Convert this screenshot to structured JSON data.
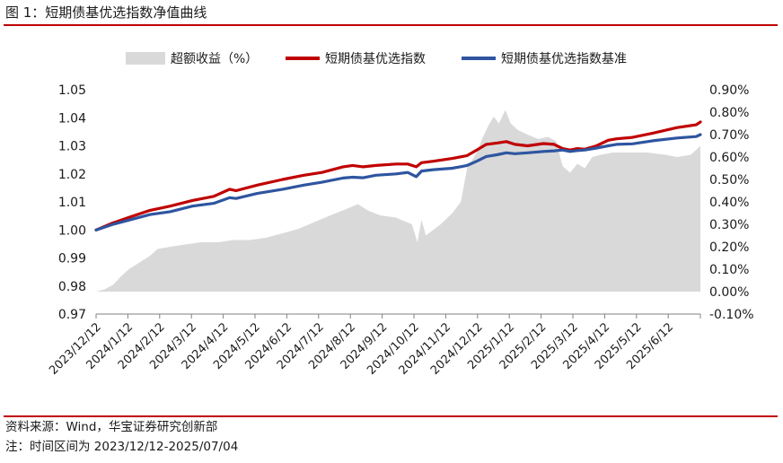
{
  "figure": {
    "title": "图 1：短期债基优选指数净值曲线",
    "source": "资料来源：Wind，华宝证券研究创新部",
    "note": "注：时间区间为 2023/12/12-2025/07/04"
  },
  "colors": {
    "accent": "#c00000",
    "excess_area": "#d9d9d9",
    "index_line": "#c00000",
    "benchmark_line": "#2e55a0",
    "axis": "#808080"
  },
  "chart_data": {
    "type": "line",
    "legend_position": "top",
    "grid": false,
    "x_axis": {
      "start": "2023-12-12",
      "end": "2025-07-04",
      "tick_labels": [
        "2023/12/12",
        "2024/1/12",
        "2024/2/12",
        "2024/3/12",
        "2024/4/12",
        "2024/5/12",
        "2024/6/12",
        "2024/7/12",
        "2024/8/12",
        "2024/9/12",
        "2024/10/12",
        "2024/11/12",
        "2024/12/12",
        "2025/1/12",
        "2025/2/12",
        "2025/3/12",
        "2025/4/12",
        "2025/5/12",
        "2025/6/12"
      ]
    },
    "y_left": {
      "range": [
        0.97,
        1.05
      ],
      "tick_labels": [
        "0.97",
        "0.98",
        "0.99",
        "1.00",
        "1.01",
        "1.02",
        "1.03",
        "1.04",
        "1.05"
      ]
    },
    "y_right": {
      "range": [
        -0.1,
        0.9
      ],
      "tick_labels": [
        "-0.10%",
        "0.00%",
        "0.10%",
        "0.20%",
        "0.30%",
        "0.40%",
        "0.50%",
        "0.60%",
        "0.70%",
        "0.80%",
        "0.90%"
      ]
    },
    "series": [
      {
        "name": "超额收益（%）",
        "type": "area",
        "axis": "right",
        "points": [
          [
            "2023-12-12",
            0.0
          ],
          [
            "2023-12-20",
            0.01
          ],
          [
            "2023-12-28",
            0.03
          ],
          [
            "2024-01-05",
            0.07
          ],
          [
            "2024-01-12",
            0.1
          ],
          [
            "2024-01-22",
            0.13
          ],
          [
            "2024-02-01",
            0.16
          ],
          [
            "2024-02-08",
            0.19
          ],
          [
            "2024-02-20",
            0.2
          ],
          [
            "2024-03-05",
            0.21
          ],
          [
            "2024-03-20",
            0.22
          ],
          [
            "2024-04-05",
            0.22
          ],
          [
            "2024-04-20",
            0.23
          ],
          [
            "2024-05-05",
            0.23
          ],
          [
            "2024-05-20",
            0.24
          ],
          [
            "2024-06-05",
            0.26
          ],
          [
            "2024-06-20",
            0.28
          ],
          [
            "2024-07-05",
            0.31
          ],
          [
            "2024-07-20",
            0.34
          ],
          [
            "2024-08-05",
            0.37
          ],
          [
            "2024-08-15",
            0.39
          ],
          [
            "2024-08-25",
            0.36
          ],
          [
            "2024-09-05",
            0.34
          ],
          [
            "2024-09-20",
            0.33
          ],
          [
            "2024-10-05",
            0.3
          ],
          [
            "2024-10-10",
            0.22
          ],
          [
            "2024-10-14",
            0.32
          ],
          [
            "2024-10-18",
            0.25
          ],
          [
            "2024-11-01",
            0.3
          ],
          [
            "2024-11-12",
            0.35
          ],
          [
            "2024-11-20",
            0.4
          ],
          [
            "2024-11-26",
            0.55
          ],
          [
            "2024-12-05",
            0.62
          ],
          [
            "2024-12-10",
            0.68
          ],
          [
            "2024-12-16",
            0.74
          ],
          [
            "2024-12-21",
            0.78
          ],
          [
            "2024-12-26",
            0.75
          ],
          [
            "2025-01-01",
            0.81
          ],
          [
            "2025-01-06",
            0.75
          ],
          [
            "2025-01-13",
            0.72
          ],
          [
            "2025-01-22",
            0.7
          ],
          [
            "2025-02-01",
            0.68
          ],
          [
            "2025-02-10",
            0.69
          ],
          [
            "2025-02-18",
            0.67
          ],
          [
            "2025-02-24",
            0.56
          ],
          [
            "2025-03-03",
            0.53
          ],
          [
            "2025-03-10",
            0.57
          ],
          [
            "2025-03-17",
            0.55
          ],
          [
            "2025-03-24",
            0.6
          ],
          [
            "2025-04-01",
            0.61
          ],
          [
            "2025-04-12",
            0.62
          ],
          [
            "2025-05-01",
            0.62
          ],
          [
            "2025-05-15",
            0.62
          ],
          [
            "2025-06-01",
            0.61
          ],
          [
            "2025-06-12",
            0.6
          ],
          [
            "2025-06-25",
            0.61
          ],
          [
            "2025-07-04",
            0.65
          ]
        ]
      },
      {
        "name": "短期债基优选指数",
        "type": "line",
        "axis": "left",
        "points": [
          [
            "2023-12-12",
            1.0
          ],
          [
            "2023-12-28",
            1.0025
          ],
          [
            "2024-01-12",
            1.0045
          ],
          [
            "2024-02-01",
            1.007
          ],
          [
            "2024-02-20",
            1.0085
          ],
          [
            "2024-03-12",
            1.0105
          ],
          [
            "2024-04-01",
            1.012
          ],
          [
            "2024-04-16",
            1.0145
          ],
          [
            "2024-04-22",
            1.014
          ],
          [
            "2024-05-12",
            1.016
          ],
          [
            "2024-06-05",
            1.018
          ],
          [
            "2024-06-25",
            1.0195
          ],
          [
            "2024-07-12",
            1.0205
          ],
          [
            "2024-08-01",
            1.0225
          ],
          [
            "2024-08-10",
            1.023
          ],
          [
            "2024-08-20",
            1.0225
          ],
          [
            "2024-09-01",
            1.023
          ],
          [
            "2024-09-20",
            1.0235
          ],
          [
            "2024-10-01",
            1.0235
          ],
          [
            "2024-10-09",
            1.0225
          ],
          [
            "2024-10-14",
            1.024
          ],
          [
            "2024-10-25",
            1.0245
          ],
          [
            "2024-11-12",
            1.0255
          ],
          [
            "2024-11-26",
            1.0265
          ],
          [
            "2024-12-05",
            1.0285
          ],
          [
            "2024-12-14",
            1.0305
          ],
          [
            "2024-12-24",
            1.031
          ],
          [
            "2025-01-02",
            1.0315
          ],
          [
            "2025-01-10",
            1.0305
          ],
          [
            "2025-01-22",
            1.03
          ],
          [
            "2025-02-06",
            1.0308
          ],
          [
            "2025-02-16",
            1.0305
          ],
          [
            "2025-02-24",
            1.029
          ],
          [
            "2025-03-03",
            1.0285
          ],
          [
            "2025-03-10",
            1.029
          ],
          [
            "2025-03-17",
            1.0288
          ],
          [
            "2025-03-28",
            1.03
          ],
          [
            "2025-04-08",
            1.032
          ],
          [
            "2025-04-16",
            1.0325
          ],
          [
            "2025-05-01",
            1.033
          ],
          [
            "2025-05-20",
            1.0345
          ],
          [
            "2025-06-12",
            1.0365
          ],
          [
            "2025-06-30",
            1.0375
          ],
          [
            "2025-07-04",
            1.0385
          ]
        ]
      },
      {
        "name": "短期债基优选指数基准",
        "type": "line",
        "axis": "left",
        "points": [
          [
            "2023-12-12",
            1.0
          ],
          [
            "2023-12-28",
            1.002
          ],
          [
            "2024-01-12",
            1.0035
          ],
          [
            "2024-02-01",
            1.0055
          ],
          [
            "2024-02-20",
            1.0065
          ],
          [
            "2024-03-12",
            1.0085
          ],
          [
            "2024-04-01",
            1.0095
          ],
          [
            "2024-04-16",
            1.0115
          ],
          [
            "2024-04-22",
            1.0112
          ],
          [
            "2024-05-12",
            1.013
          ],
          [
            "2024-06-05",
            1.0145
          ],
          [
            "2024-06-25",
            1.016
          ],
          [
            "2024-07-12",
            1.017
          ],
          [
            "2024-08-01",
            1.0185
          ],
          [
            "2024-08-10",
            1.0188
          ],
          [
            "2024-08-20",
            1.0186
          ],
          [
            "2024-09-01",
            1.0195
          ],
          [
            "2024-09-20",
            1.02
          ],
          [
            "2024-10-01",
            1.0205
          ],
          [
            "2024-10-09",
            1.019
          ],
          [
            "2024-10-14",
            1.021
          ],
          [
            "2024-10-25",
            1.0215
          ],
          [
            "2024-11-12",
            1.022
          ],
          [
            "2024-11-26",
            1.023
          ],
          [
            "2024-12-05",
            1.0245
          ],
          [
            "2024-12-14",
            1.0262
          ],
          [
            "2024-12-24",
            1.0268
          ],
          [
            "2025-01-02",
            1.0275
          ],
          [
            "2025-01-10",
            1.0272
          ],
          [
            "2025-01-22",
            1.0275
          ],
          [
            "2025-02-06",
            1.028
          ],
          [
            "2025-02-16",
            1.0282
          ],
          [
            "2025-02-24",
            1.0285
          ],
          [
            "2025-03-03",
            1.028
          ],
          [
            "2025-03-10",
            1.0283
          ],
          [
            "2025-03-17",
            1.0285
          ],
          [
            "2025-03-28",
            1.0292
          ],
          [
            "2025-04-08",
            1.03
          ],
          [
            "2025-04-16",
            1.0305
          ],
          [
            "2025-05-01",
            1.0307
          ],
          [
            "2025-05-20",
            1.0318
          ],
          [
            "2025-06-12",
            1.0328
          ],
          [
            "2025-06-30",
            1.0333
          ],
          [
            "2025-07-04",
            1.034
          ]
        ]
      }
    ]
  }
}
